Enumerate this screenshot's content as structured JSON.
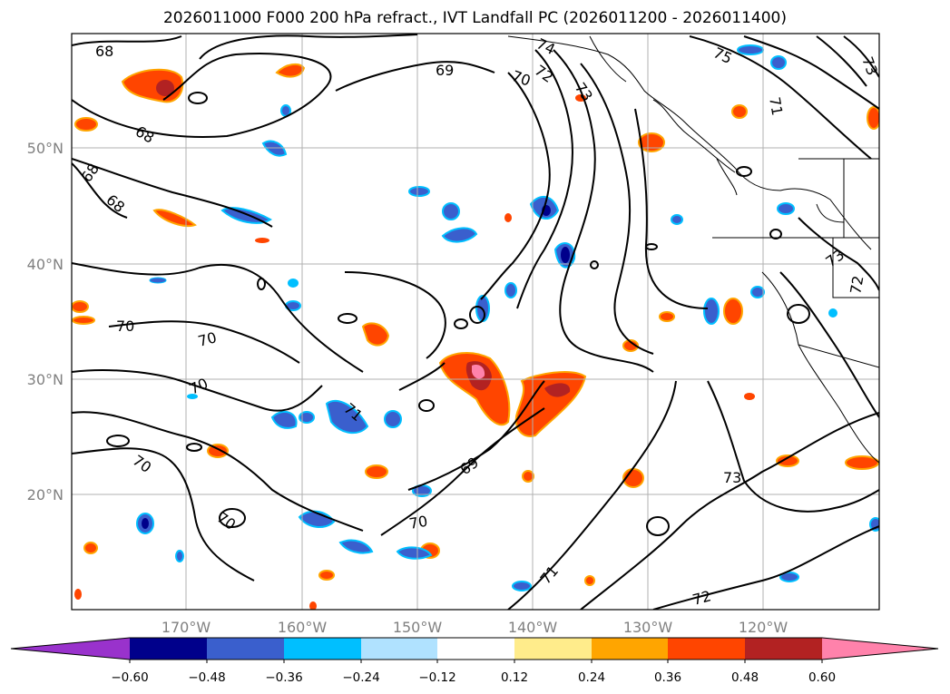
{
  "title": "2026011000 F000 200 hPa refract., IVT Landfall PC (2026011200 - 2026011400)",
  "map": {
    "longitude_labels": [
      "170°W",
      "160°W",
      "150°W",
      "140°W",
      "130°W",
      "120°W"
    ],
    "latitude_labels": [
      "50°N",
      "40°N",
      "30°N",
      "20°N"
    ],
    "grid": true,
    "contour_labels": [
      "68",
      "68",
      "68",
      "68",
      "69",
      "70",
      "72",
      "73",
      "74",
      "75",
      "73",
      "71",
      "70",
      "70",
      "70",
      "70",
      "70",
      "70",
      "69",
      "71",
      "72",
      "73",
      "71",
      "73",
      "72"
    ]
  },
  "colorbar": {
    "ticks": [
      "−0.60",
      "−0.48",
      "−0.36",
      "−0.24",
      "−0.12",
      "0.12",
      "0.24",
      "0.36",
      "0.48",
      "0.60"
    ],
    "colors": [
      "#9932cc",
      "#00008b",
      "#3a5fcd",
      "#00bfff",
      "#b0e2ff",
      "#ffffff",
      "#ffec8b",
      "#ffa500",
      "#ff4500",
      "#b22222",
      "#ff82ab"
    ],
    "extend": "both"
  }
}
